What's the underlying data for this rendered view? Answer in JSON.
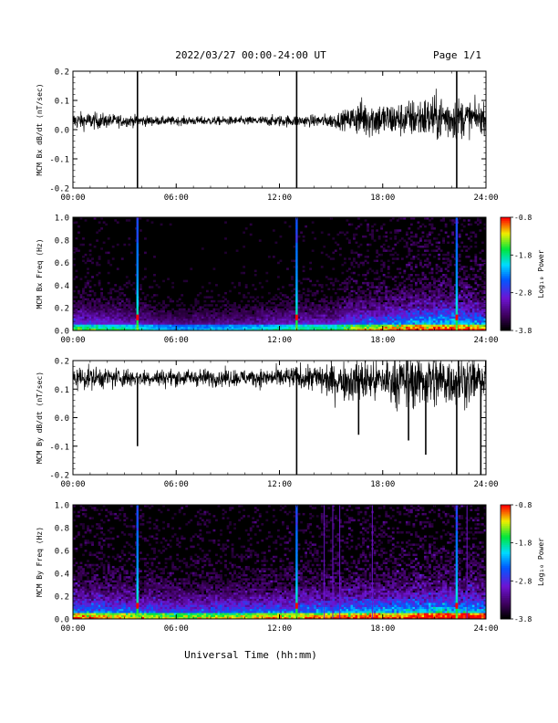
{
  "header": {
    "title": "2022/03/27  00:00-24:00 UT",
    "page": "Page 1/1"
  },
  "footer": {
    "xlabel": "Universal Time (hh:mm)"
  },
  "chart_data": [
    {
      "type": "line",
      "ylabel": "MCM Bx dB/dt (nT/sec)",
      "xlim": [
        "00:00",
        "24:00"
      ],
      "ylim": [
        -0.2,
        0.2
      ],
      "x_ticks": [
        "00:00",
        "06:00",
        "12:00",
        "18:00",
        "24:00"
      ],
      "y_ticks": [
        "0.2",
        "0.1",
        "0.0",
        "-0.1",
        "-0.2"
      ],
      "series": [
        {
          "hours": [
            0,
            1,
            2,
            3,
            3.8,
            5,
            6,
            8,
            10,
            12,
            13,
            14,
            15,
            16,
            16.5,
            17,
            18,
            19,
            20,
            21,
            22,
            22.5,
            23,
            24
          ],
          "center": [
            0.03,
            0.03,
            0.03,
            0.03,
            0.03,
            0.03,
            0.03,
            0.03,
            0.03,
            0.03,
            0.03,
            0.03,
            0.03,
            0.035,
            0.04,
            0.04,
            0.035,
            0.035,
            0.04,
            0.04,
            0.04,
            0.04,
            0.04,
            0.04
          ],
          "amplitude": [
            0.03,
            0.03,
            0.025,
            0.02,
            0.02,
            0.015,
            0.015,
            0.015,
            0.015,
            0.02,
            0.02,
            0.02,
            0.025,
            0.035,
            0.06,
            0.07,
            0.06,
            0.06,
            0.07,
            0.08,
            0.08,
            0.07,
            0.06,
            0.05
          ],
          "spikes": [
            {
              "hour": 3.75,
              "value": -0.2
            },
            {
              "hour": 3.75,
              "value": 0.2
            },
            {
              "hour": 13.0,
              "value": -0.2
            },
            {
              "hour": 13.0,
              "value": 0.2
            },
            {
              "hour": 22.3,
              "value": -0.2
            },
            {
              "hour": 22.3,
              "value": 0.2
            }
          ]
        }
      ]
    },
    {
      "type": "heatmap",
      "ylabel": "MCM Bx Freq (Hz)",
      "colorbar_label": "Log₁₀ Power",
      "colorbar_ticks": [
        "-0.8",
        "-1.8",
        "-2.8",
        "-3.8"
      ],
      "clim": [
        -3.8,
        -0.8
      ],
      "xlim": [
        "00:00",
        "24:00"
      ],
      "ylim": [
        0,
        1.0
      ],
      "x_ticks": [
        "00:00",
        "06:00",
        "12:00",
        "18:00",
        "24:00"
      ],
      "y_ticks": [
        "1.0",
        "0.8",
        "0.6",
        "0.4",
        "0.2",
        "0.0"
      ],
      "activity_hours": [
        0,
        3,
        6,
        10,
        13,
        15,
        16,
        18,
        20,
        22,
        24
      ],
      "activity_level": [
        0.55,
        0.45,
        0.3,
        0.35,
        0.45,
        0.45,
        0.6,
        0.7,
        0.8,
        0.85,
        0.75
      ],
      "bright_lines_hours": [
        3.75,
        13.0,
        22.3
      ]
    },
    {
      "type": "line",
      "ylabel": "MCM By dB/dt (nT/sec)",
      "xlim": [
        "00:00",
        "24:00"
      ],
      "ylim": [
        -0.2,
        0.2
      ],
      "x_ticks": [
        "00:00",
        "06:00",
        "12:00",
        "18:00",
        "24:00"
      ],
      "y_ticks": [
        "0.2",
        "0.1",
        "0.0",
        "-0.1",
        "-0.2"
      ],
      "series": [
        {
          "hours": [
            0,
            1,
            2,
            3,
            4,
            6,
            8,
            10,
            12,
            13,
            14,
            15,
            16,
            17,
            18,
            19,
            20,
            21,
            22,
            23,
            24
          ],
          "center": [
            0.14,
            0.14,
            0.14,
            0.14,
            0.14,
            0.14,
            0.14,
            0.14,
            0.14,
            0.14,
            0.14,
            0.13,
            0.13,
            0.13,
            0.13,
            0.13,
            0.13,
            0.13,
            0.13,
            0.13,
            0.13
          ],
          "amplitude": [
            0.04,
            0.04,
            0.035,
            0.035,
            0.03,
            0.03,
            0.03,
            0.03,
            0.035,
            0.04,
            0.05,
            0.06,
            0.07,
            0.08,
            0.08,
            0.09,
            0.1,
            0.1,
            0.09,
            0.08,
            0.07
          ],
          "spikes": [
            {
              "hour": 3.75,
              "value": -0.1
            },
            {
              "hour": 13.0,
              "value": -0.2
            },
            {
              "hour": 16.6,
              "value": -0.06
            },
            {
              "hour": 19.5,
              "value": -0.08
            },
            {
              "hour": 20.5,
              "value": -0.13
            },
            {
              "hour": 22.3,
              "value": -0.2
            },
            {
              "hour": 22.4,
              "value": 0.2
            },
            {
              "hour": 23.7,
              "value": -0.2
            }
          ]
        }
      ]
    },
    {
      "type": "heatmap",
      "ylabel": "MCM By Freq (Hz)",
      "colorbar_label": "Log₁₀ Power",
      "colorbar_ticks": [
        "-0.8",
        "-1.8",
        "-2.8",
        "-3.8"
      ],
      "clim": [
        -3.8,
        -0.8
      ],
      "xlim": [
        "00:00",
        "24:00"
      ],
      "ylim": [
        0,
        1.0
      ],
      "x_ticks": [
        "00:00",
        "06:00",
        "12:00",
        "18:00",
        "24:00"
      ],
      "y_ticks": [
        "1.0",
        "0.8",
        "0.6",
        "0.4",
        "0.2",
        "0.0"
      ],
      "activity_hours": [
        0,
        3,
        6,
        10,
        13,
        15,
        16,
        18,
        20,
        22,
        24
      ],
      "activity_level": [
        0.75,
        0.7,
        0.6,
        0.65,
        0.7,
        0.75,
        0.8,
        0.8,
        0.85,
        0.9,
        0.85
      ],
      "bright_lines_hours": [
        3.75,
        13.0,
        22.3
      ],
      "faint_lines_hours": [
        14.6,
        15.1,
        15.5,
        17.4,
        22.9
      ]
    }
  ]
}
